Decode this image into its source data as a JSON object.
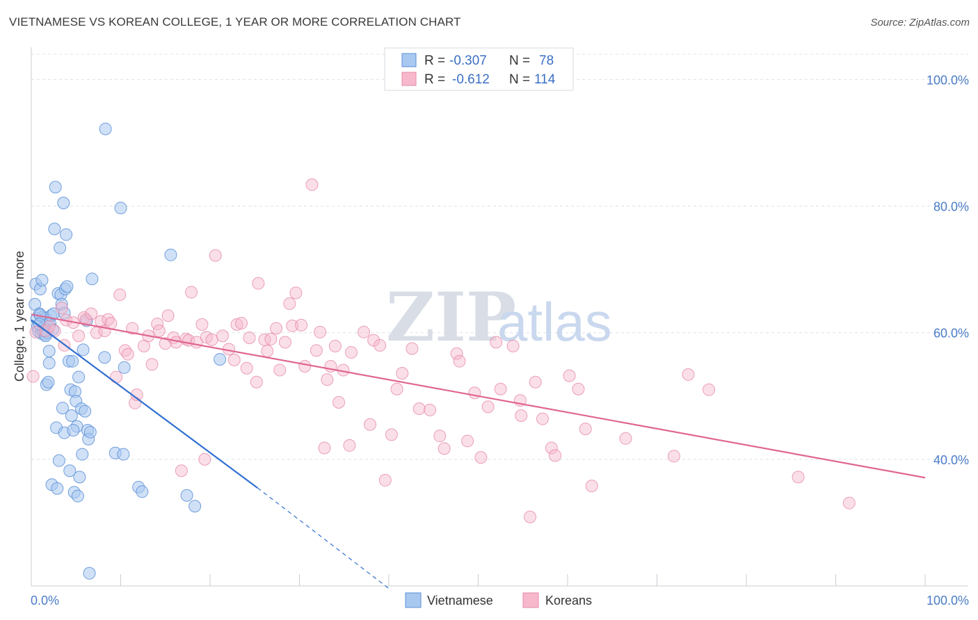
{
  "title": "VIETNAMESE VS KOREAN COLLEGE, 1 YEAR OR MORE CORRELATION CHART",
  "source": "Source: ZipAtlas.com",
  "watermark": {
    "zip": "ZIP",
    "atlas": "atlas"
  },
  "legend_box": {
    "r_label": "R =",
    "n_label": "N =",
    "rows": [
      {
        "series": "Vietnamese",
        "r": "-0.307",
        "n": "78"
      },
      {
        "series": "Koreans",
        "r": "-0.612",
        "n": "114"
      }
    ]
  },
  "colors": {
    "vietnamese_fill": "#a9c8f0",
    "vietnamese_stroke": "#5a8fd6",
    "vietnamese_line": "#2f6fd1",
    "koreans_fill": "#f7b8cc",
    "koreans_stroke": "#e58aa8",
    "koreans_line": "#e0668f",
    "grid": "#dde1e8",
    "tick_text": "#4a7cc7"
  },
  "chart_data": {
    "type": "scatter",
    "title": "VIETNAMESE VS KOREAN COLLEGE, 1 YEAR OR MORE CORRELATION CHART",
    "xlabel": "",
    "ylabel": "College, 1 year or more",
    "xlim": [
      0,
      100
    ],
    "ylim": [
      20,
      104
    ],
    "x_tick_labels": [
      "0.0%",
      "100.0%"
    ],
    "y_ticks": [
      40,
      60,
      80,
      100
    ],
    "y_tick_labels": [
      "40.0%",
      "60.0%",
      "80.0%",
      "100.0%"
    ],
    "grid": true,
    "legend": "top-center",
    "bottom_legend": [
      "Vietnamese",
      "Koreans"
    ],
    "series": [
      {
        "name": "Vietnamese",
        "trend": {
          "x0": 0,
          "y0": 62.0,
          "x1": 25.3,
          "y1": 35.5,
          "dash_to_x": 40,
          "dash_to_y": 19.6
        },
        "points": [
          [
            0.4,
            64.5
          ],
          [
            0.5,
            67.7
          ],
          [
            0.6,
            62.2
          ],
          [
            0.7,
            61.0
          ],
          [
            0.8,
            60.2
          ],
          [
            0.9,
            63.0
          ],
          [
            1.0,
            66.9
          ],
          [
            1.1,
            59.9
          ],
          [
            1.2,
            68.3
          ],
          [
            1.3,
            62.5
          ],
          [
            1.4,
            60.8
          ],
          [
            1.5,
            59.7
          ],
          [
            1.6,
            62.3
          ],
          [
            1.7,
            51.8
          ],
          [
            1.8,
            60.0
          ],
          [
            1.9,
            52.2
          ],
          [
            2.0,
            55.2
          ],
          [
            2.1,
            61.5
          ],
          [
            2.2,
            62.7
          ],
          [
            2.3,
            36.0
          ],
          [
            2.5,
            63.0
          ],
          [
            2.6,
            76.4
          ],
          [
            2.7,
            83.0
          ],
          [
            2.8,
            45.0
          ],
          [
            2.9,
            35.4
          ],
          [
            3.0,
            66.2
          ],
          [
            3.1,
            39.8
          ],
          [
            3.2,
            73.4
          ],
          [
            3.3,
            66.0
          ],
          [
            3.4,
            64.5
          ],
          [
            3.5,
            48.1
          ],
          [
            3.6,
            80.5
          ],
          [
            3.7,
            44.2
          ],
          [
            3.8,
            66.9
          ],
          [
            3.9,
            75.5
          ],
          [
            4.0,
            67.3
          ],
          [
            4.2,
            55.5
          ],
          [
            4.3,
            38.2
          ],
          [
            4.4,
            51.0
          ],
          [
            4.5,
            46.9
          ],
          [
            4.6,
            55.5
          ],
          [
            4.8,
            34.8
          ],
          [
            4.9,
            50.7
          ],
          [
            5.0,
            49.2
          ],
          [
            5.1,
            45.2
          ],
          [
            5.2,
            34.2
          ],
          [
            5.3,
            53.0
          ],
          [
            5.4,
            37.2
          ],
          [
            5.6,
            48.0
          ],
          [
            5.7,
            40.8
          ],
          [
            5.8,
            57.3
          ],
          [
            6.0,
            47.6
          ],
          [
            6.2,
            61.9
          ],
          [
            6.3,
            44.6
          ],
          [
            6.4,
            43.2
          ],
          [
            6.5,
            22.0
          ],
          [
            6.6,
            44.3
          ],
          [
            6.8,
            68.5
          ],
          [
            8.2,
            56.1
          ],
          [
            8.3,
            92.2
          ],
          [
            9.4,
            41.0
          ],
          [
            10.0,
            79.7
          ],
          [
            10.3,
            40.8
          ],
          [
            10.4,
            54.5
          ],
          [
            12.0,
            35.6
          ],
          [
            12.4,
            34.9
          ],
          [
            15.6,
            72.3
          ],
          [
            17.4,
            34.3
          ],
          [
            18.3,
            32.6
          ],
          [
            21.1,
            55.8
          ],
          [
            1.3,
            60.3
          ],
          [
            1.0,
            62.8
          ],
          [
            2.4,
            60.5
          ],
          [
            0.9,
            61.4
          ],
          [
            1.6,
            59.5
          ],
          [
            3.7,
            63.1
          ],
          [
            4.7,
            44.6
          ],
          [
            2.0,
            57.1
          ]
        ]
      },
      {
        "name": "Koreans",
        "trend": {
          "x0": 0,
          "y0": 62.9,
          "x1": 100,
          "y1": 37.1
        },
        "points": [
          [
            0.2,
            53.1
          ],
          [
            0.5,
            60.1
          ],
          [
            1.6,
            60.3
          ],
          [
            2.0,
            61.0
          ],
          [
            2.6,
            60.3
          ],
          [
            3.4,
            63.9
          ],
          [
            3.7,
            58.0
          ],
          [
            3.9,
            62.0
          ],
          [
            4.7,
            61.6
          ],
          [
            5.3,
            59.5
          ],
          [
            5.9,
            62.4
          ],
          [
            6.1,
            62.1
          ],
          [
            6.7,
            63.0
          ],
          [
            7.3,
            60.0
          ],
          [
            7.8,
            61.8
          ],
          [
            8.2,
            60.3
          ],
          [
            8.6,
            62.1
          ],
          [
            8.9,
            61.5
          ],
          [
            9.5,
            53.0
          ],
          [
            9.9,
            66.0
          ],
          [
            10.5,
            57.2
          ],
          [
            10.8,
            56.6
          ],
          [
            11.3,
            60.7
          ],
          [
            11.6,
            48.9
          ],
          [
            11.8,
            50.2
          ],
          [
            12.6,
            57.9
          ],
          [
            13.1,
            59.5
          ],
          [
            13.5,
            55.0
          ],
          [
            14.1,
            61.4
          ],
          [
            14.3,
            60.3
          ],
          [
            15.0,
            58.3
          ],
          [
            15.3,
            62.7
          ],
          [
            15.9,
            59.2
          ],
          [
            16.2,
            58.5
          ],
          [
            16.8,
            38.2
          ],
          [
            17.3,
            59.0
          ],
          [
            17.6,
            58.8
          ],
          [
            17.9,
            66.4
          ],
          [
            18.5,
            58.5
          ],
          [
            19.1,
            61.3
          ],
          [
            19.4,
            40.0
          ],
          [
            19.6,
            59.3
          ],
          [
            20.2,
            58.9
          ],
          [
            20.6,
            72.2
          ],
          [
            21.4,
            59.5
          ],
          [
            22.1,
            57.4
          ],
          [
            22.7,
            55.7
          ],
          [
            23.0,
            61.3
          ],
          [
            23.5,
            61.5
          ],
          [
            24.1,
            54.4
          ],
          [
            24.4,
            59.2
          ],
          [
            25.2,
            52.2
          ],
          [
            25.4,
            67.8
          ],
          [
            26.1,
            58.9
          ],
          [
            26.4,
            57.1
          ],
          [
            26.8,
            59.0
          ],
          [
            27.4,
            60.7
          ],
          [
            27.8,
            54.1
          ],
          [
            28.4,
            58.5
          ],
          [
            28.9,
            64.6
          ],
          [
            29.2,
            61.1
          ],
          [
            29.6,
            66.3
          ],
          [
            30.2,
            61.2
          ],
          [
            30.6,
            54.7
          ],
          [
            31.4,
            83.4
          ],
          [
            31.9,
            57.2
          ],
          [
            32.3,
            60.1
          ],
          [
            32.8,
            41.8
          ],
          [
            33.1,
            52.6
          ],
          [
            33.5,
            54.7
          ],
          [
            34.0,
            57.9
          ],
          [
            34.4,
            49.0
          ],
          [
            34.9,
            54.1
          ],
          [
            35.6,
            42.2
          ],
          [
            35.8,
            56.9
          ],
          [
            37.2,
            60.1
          ],
          [
            37.9,
            45.5
          ],
          [
            38.3,
            58.8
          ],
          [
            39.0,
            58.0
          ],
          [
            39.6,
            36.7
          ],
          [
            40.3,
            43.9
          ],
          [
            40.9,
            51.1
          ],
          [
            41.5,
            53.6
          ],
          [
            42.6,
            57.5
          ],
          [
            43.4,
            48.0
          ],
          [
            44.6,
            47.8
          ],
          [
            45.7,
            43.7
          ],
          [
            46.2,
            41.7
          ],
          [
            47.6,
            56.7
          ],
          [
            47.9,
            55.5
          ],
          [
            48.8,
            42.9
          ],
          [
            49.6,
            50.5
          ],
          [
            50.3,
            40.3
          ],
          [
            51.1,
            48.3
          ],
          [
            52.0,
            58.5
          ],
          [
            52.5,
            51.1
          ],
          [
            53.9,
            57.9
          ],
          [
            54.7,
            49.3
          ],
          [
            54.8,
            46.9
          ],
          [
            55.8,
            30.9
          ],
          [
            56.4,
            52.2
          ],
          [
            57.2,
            46.4
          ],
          [
            58.2,
            41.8
          ],
          [
            58.6,
            40.6
          ],
          [
            60.2,
            53.2
          ],
          [
            61.2,
            51.1
          ],
          [
            62.0,
            44.8
          ],
          [
            62.7,
            35.8
          ],
          [
            66.5,
            43.3
          ],
          [
            71.9,
            40.5
          ],
          [
            73.5,
            53.4
          ],
          [
            75.8,
            51.0
          ],
          [
            85.8,
            37.2
          ],
          [
            91.5,
            33.1
          ]
        ]
      }
    ]
  }
}
